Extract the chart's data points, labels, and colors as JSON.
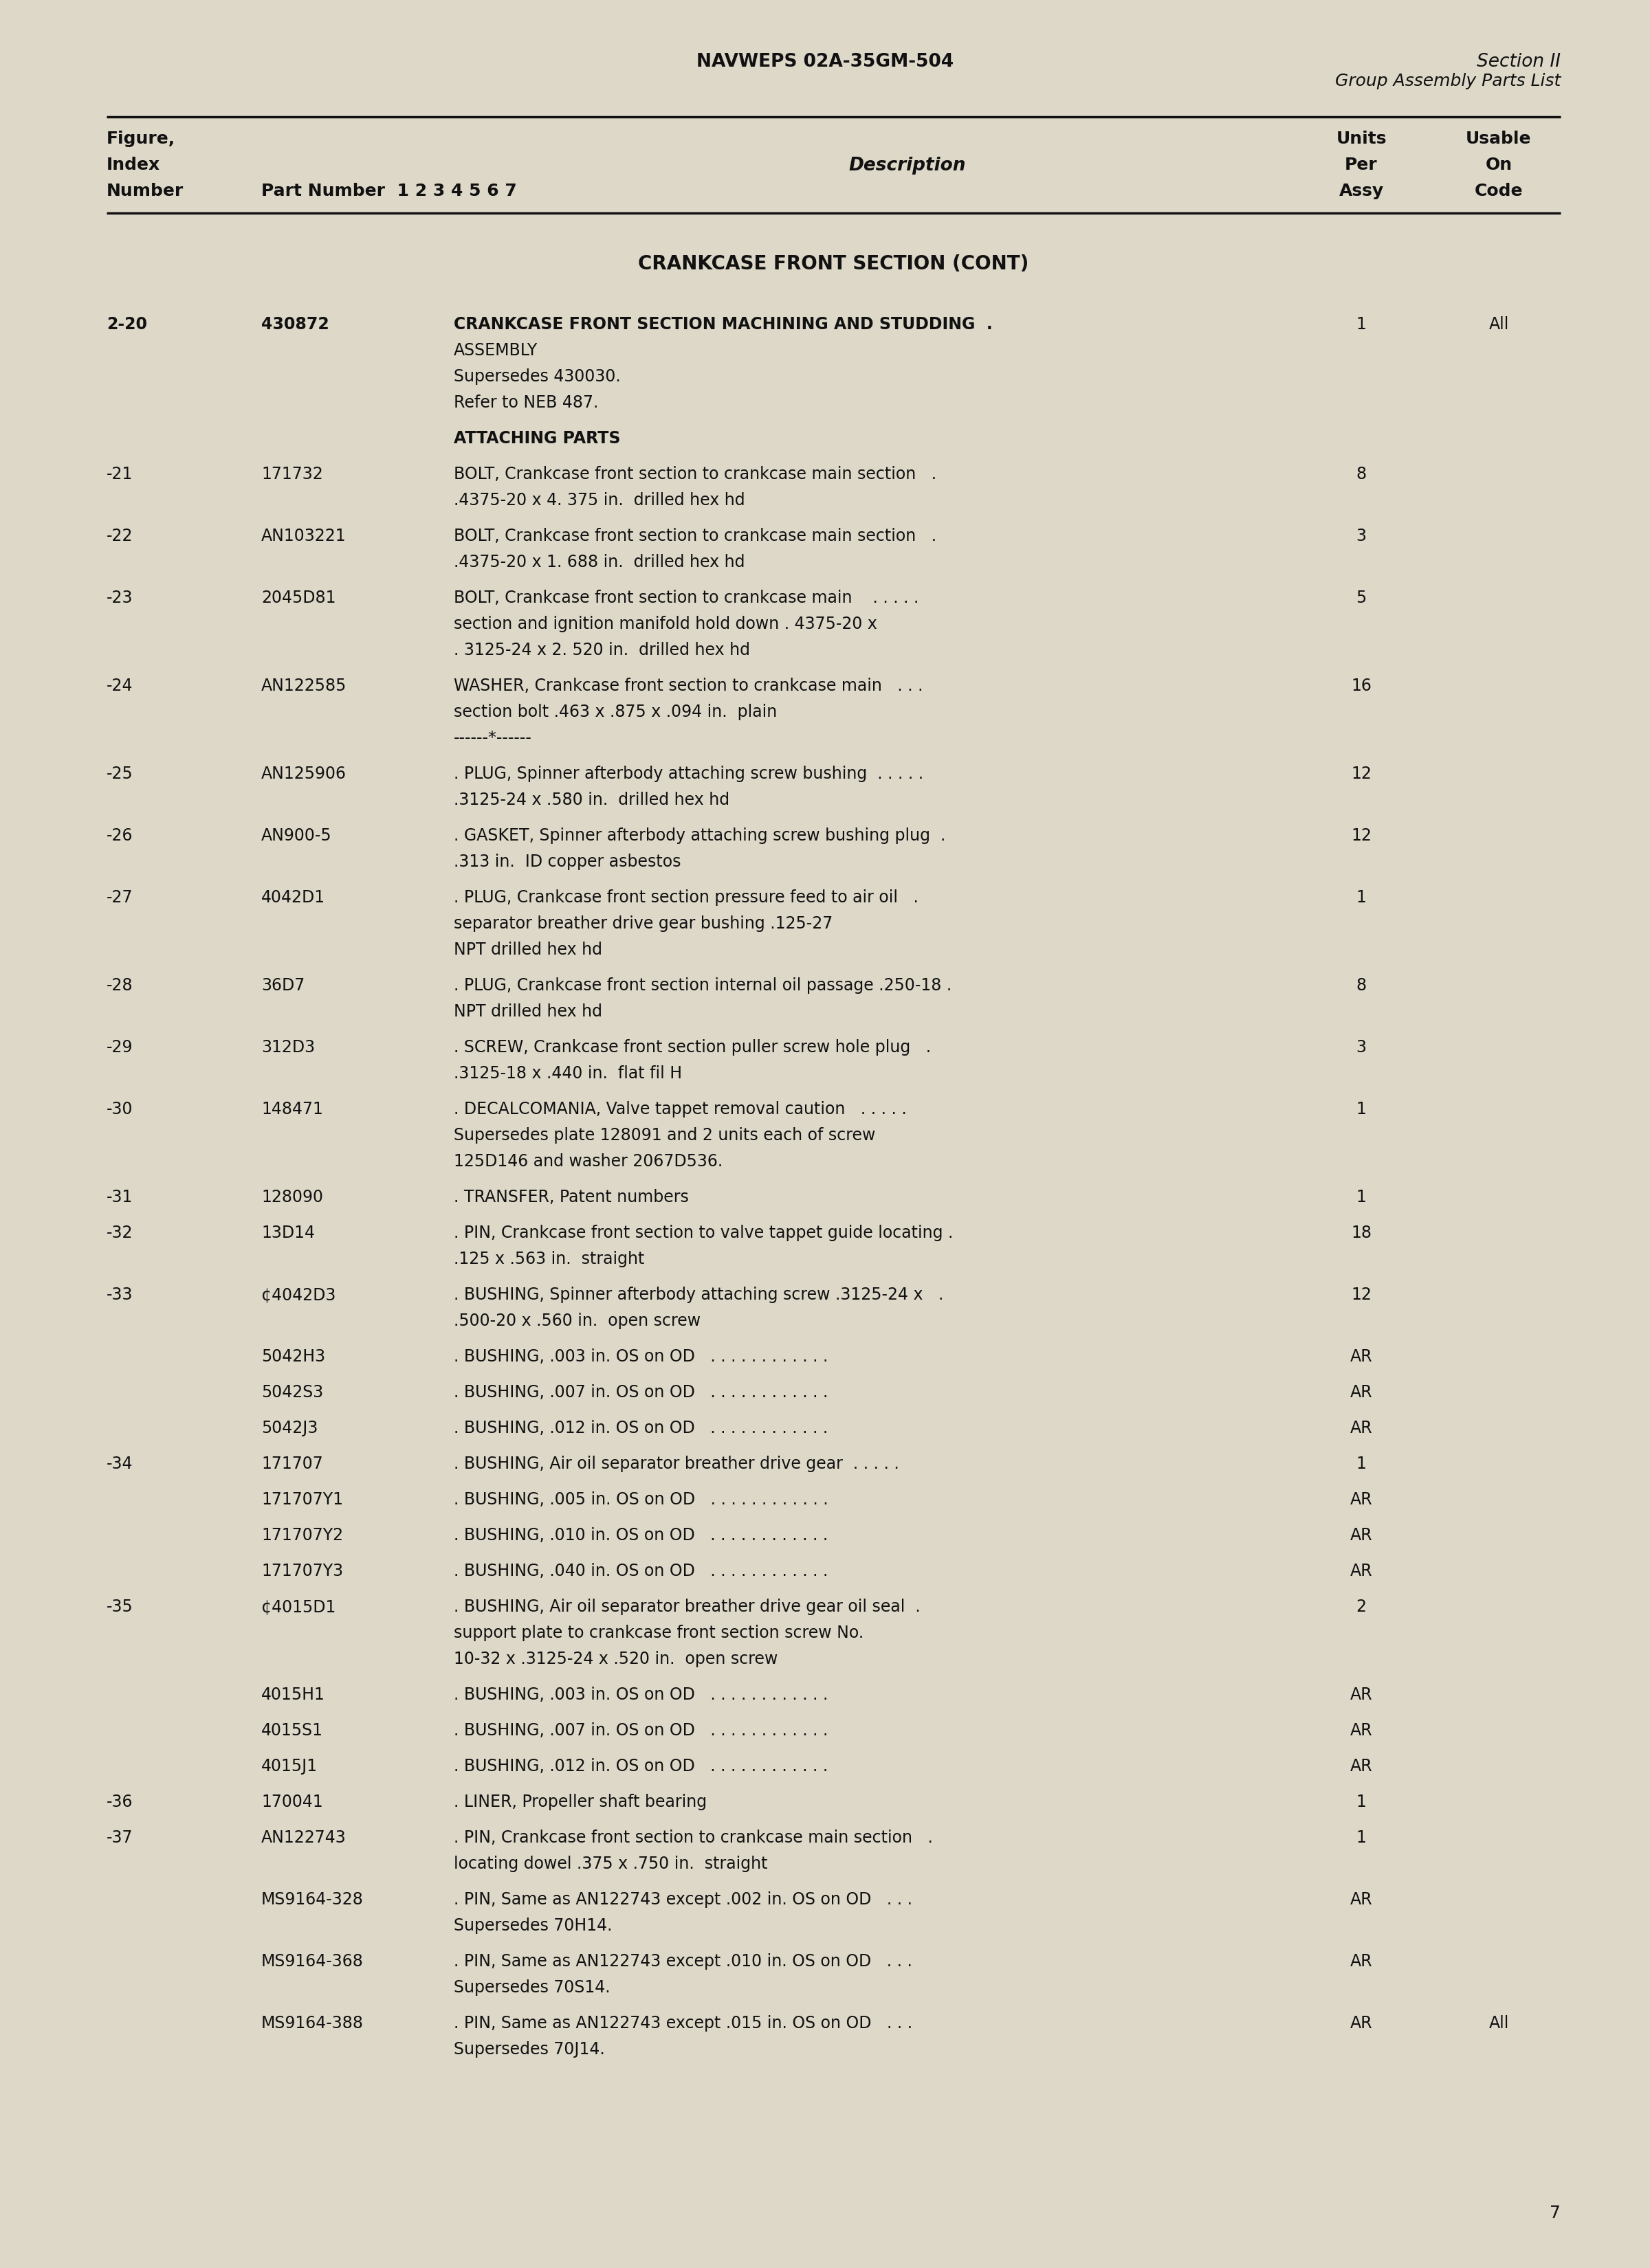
{
  "header_left": "NAVWEPS 02A-35GM-504",
  "header_right_line1": "Section II",
  "header_right_line2": "Group Assembly Parts List",
  "section_title": "CRANKCASE FRONT SECTION (CONT)",
  "rows": [
    {
      "fig": "2-20",
      "part": "430872",
      "desc_lines": [
        "CRANKCASE FRONT SECTION MACHINING AND STUDDING  .",
        "ASSEMBLY",
        "Supersedes 430030.",
        "Refer to NEB 487."
      ],
      "units": "1",
      "usable": "All",
      "bold": true
    },
    {
      "fig": "",
      "part": "",
      "desc_lines": [
        "ATTACHING PARTS"
      ],
      "units": "",
      "usable": "",
      "label_only": true
    },
    {
      "fig": "-21",
      "part": "171732",
      "desc_lines": [
        "BOLT, Crankcase front section to crankcase main section   .",
        ".4375-20 x 4. 375 in.  drilled hex hd"
      ],
      "units": "8",
      "usable": ""
    },
    {
      "fig": "-22",
      "part": "AN103221",
      "desc_lines": [
        "BOLT, Crankcase front section to crankcase main section   .",
        ".4375-20 x 1. 688 in.  drilled hex hd"
      ],
      "units": "3",
      "usable": ""
    },
    {
      "fig": "-23",
      "part": "2045D81",
      "desc_lines": [
        "BOLT, Crankcase front section to crankcase main    . . . . .",
        "section and ignition manifold hold down . 4375-20 x",
        ". 3125-24 x 2. 520 in.  drilled hex hd"
      ],
      "units": "5",
      "usable": ""
    },
    {
      "fig": "-24",
      "part": "AN122585",
      "desc_lines": [
        "WASHER, Crankcase front section to crankcase main   . . .",
        "section bolt .463 x .875 x .094 in.  plain",
        "------*------"
      ],
      "units": "16",
      "usable": ""
    },
    {
      "fig": "-25",
      "part": "AN125906",
      "desc_lines": [
        ". PLUG, Spinner afterbody attaching screw bushing  . . . . .",
        ".3125-24 x .580 in.  drilled hex hd"
      ],
      "units": "12",
      "usable": ""
    },
    {
      "fig": "-26",
      "part": "AN900-5",
      "desc_lines": [
        ". GASKET, Spinner afterbody attaching screw bushing plug  .",
        ".313 in.  ID copper asbestos"
      ],
      "units": "12",
      "usable": ""
    },
    {
      "fig": "-27",
      "part": "4042D1",
      "desc_lines": [
        ". PLUG, Crankcase front section pressure feed to air oil   .",
        "separator breather drive gear bushing .125-27",
        "NPT drilled hex hd"
      ],
      "units": "1",
      "usable": ""
    },
    {
      "fig": "-28",
      "part": "36D7",
      "desc_lines": [
        ". PLUG, Crankcase front section internal oil passage .250-18 .",
        "NPT drilled hex hd"
      ],
      "units": "8",
      "usable": ""
    },
    {
      "fig": "-29",
      "part": "312D3",
      "desc_lines": [
        ". SCREW, Crankcase front section puller screw hole plug   .",
        ".3125-18 x .440 in.  flat fil H"
      ],
      "units": "3",
      "usable": ""
    },
    {
      "fig": "-30",
      "part": "148471",
      "desc_lines": [
        ". DECALCOMANIA, Valve tappet removal caution   . . . . .",
        "Supersedes plate 128091 and 2 units each of screw",
        "125D146 and washer 2067D536."
      ],
      "units": "1",
      "usable": ""
    },
    {
      "fig": "-31",
      "part": "128090",
      "desc_lines": [
        ". TRANSFER, Patent numbers"
      ],
      "units": "1",
      "usable": ""
    },
    {
      "fig": "-32",
      "part": "13D14",
      "desc_lines": [
        ". PIN, Crankcase front section to valve tappet guide locating .",
        ".125 x .563 in.  straight"
      ],
      "units": "18",
      "usable": ""
    },
    {
      "fig": "-33",
      "part": "¢4042D3",
      "desc_lines": [
        ". BUSHING, Spinner afterbody attaching screw .3125-24 x   .",
        ".500-20 x .560 in.  open screw"
      ],
      "units": "12",
      "usable": ""
    },
    {
      "fig": "",
      "part": "5042H3",
      "desc_lines": [
        ". BUSHING, .003 in. OS on OD   . . . . . . . . . . . ."
      ],
      "units": "AR",
      "usable": ""
    },
    {
      "fig": "",
      "part": "5042S3",
      "desc_lines": [
        ". BUSHING, .007 in. OS on OD   . . . . . . . . . . . ."
      ],
      "units": "AR",
      "usable": ""
    },
    {
      "fig": "",
      "part": "5042J3",
      "desc_lines": [
        ". BUSHING, .012 in. OS on OD   . . . . . . . . . . . ."
      ],
      "units": "AR",
      "usable": ""
    },
    {
      "fig": "-34",
      "part": "171707",
      "desc_lines": [
        ". BUSHING, Air oil separator breather drive gear  . . . . ."
      ],
      "units": "1",
      "usable": ""
    },
    {
      "fig": "",
      "part": "171707Y1",
      "desc_lines": [
        ". BUSHING, .005 in. OS on OD   . . . . . . . . . . . ."
      ],
      "units": "AR",
      "usable": ""
    },
    {
      "fig": "",
      "part": "171707Y2",
      "desc_lines": [
        ". BUSHING, .010 in. OS on OD   . . . . . . . . . . . ."
      ],
      "units": "AR",
      "usable": ""
    },
    {
      "fig": "",
      "part": "171707Y3",
      "desc_lines": [
        ". BUSHING, .040 in. OS on OD   . . . . . . . . . . . ."
      ],
      "units": "AR",
      "usable": ""
    },
    {
      "fig": "-35",
      "part": "¢4015D1",
      "desc_lines": [
        ". BUSHING, Air oil separator breather drive gear oil seal  .",
        "support plate to crankcase front section screw No.",
        "10-32 x .3125-24 x .520 in.  open screw"
      ],
      "units": "2",
      "usable": ""
    },
    {
      "fig": "",
      "part": "4015H1",
      "desc_lines": [
        ". BUSHING, .003 in. OS on OD   . . . . . . . . . . . ."
      ],
      "units": "AR",
      "usable": ""
    },
    {
      "fig": "",
      "part": "4015S1",
      "desc_lines": [
        ". BUSHING, .007 in. OS on OD   . . . . . . . . . . . ."
      ],
      "units": "AR",
      "usable": ""
    },
    {
      "fig": "",
      "part": "4015J1",
      "desc_lines": [
        ". BUSHING, .012 in. OS on OD   . . . . . . . . . . . ."
      ],
      "units": "AR",
      "usable": ""
    },
    {
      "fig": "-36",
      "part": "170041",
      "desc_lines": [
        ". LINER, Propeller shaft bearing"
      ],
      "units": "1",
      "usable": ""
    },
    {
      "fig": "-37",
      "part": "AN122743",
      "desc_lines": [
        ". PIN, Crankcase front section to crankcase main section   .",
        "locating dowel .375 x .750 in.  straight"
      ],
      "units": "1",
      "usable": ""
    },
    {
      "fig": "",
      "part": "MS9164-328",
      "desc_lines": [
        ". PIN, Same as AN122743 except .002 in. OS on OD   . . .",
        "Supersedes 70H14."
      ],
      "units": "AR",
      "usable": ""
    },
    {
      "fig": "",
      "part": "MS9164-368",
      "desc_lines": [
        ". PIN, Same as AN122743 except .010 in. OS on OD   . . .",
        "Supersedes 70S14."
      ],
      "units": "AR",
      "usable": ""
    },
    {
      "fig": "",
      "part": "MS9164-388",
      "desc_lines": [
        ". PIN, Same as AN122743 except .015 in. OS on OD   . . .",
        "Supersedes 70J14."
      ],
      "units": "AR",
      "usable": "All"
    }
  ],
  "page_number": "7",
  "bg_color": "#ddd8c8",
  "text_color": "#111111",
  "line_color": "#111111"
}
